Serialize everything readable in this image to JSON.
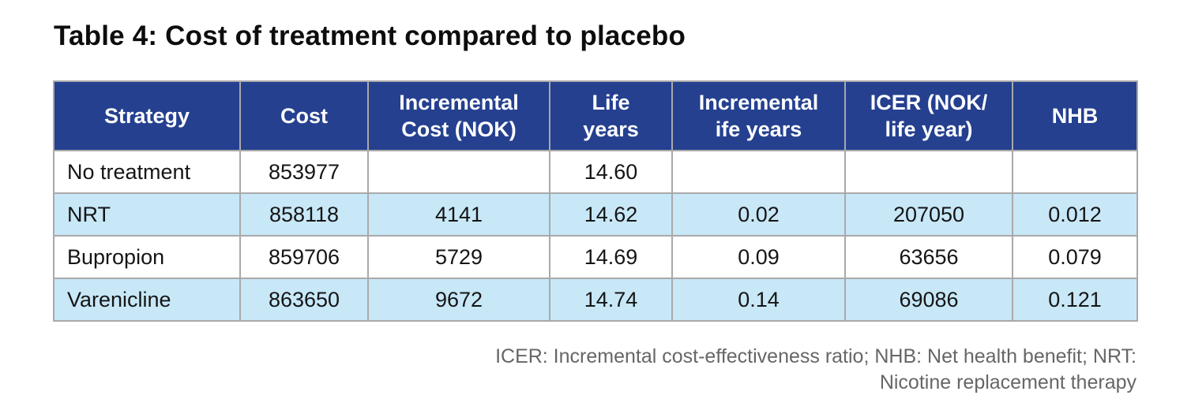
{
  "title": "Table 4: Cost of treatment compared to placebo",
  "table": {
    "headers": [
      {
        "line1": "Strategy",
        "line2": ""
      },
      {
        "line1": "Cost",
        "line2": ""
      },
      {
        "line1": "Incremental",
        "line2": "Cost (NOK)"
      },
      {
        "line1": "Life",
        "line2": "years"
      },
      {
        "line1": "Incremental",
        "line2": "ife years"
      },
      {
        "line1": "ICER (NOK/",
        "line2": "life year)"
      },
      {
        "line1": "NHB",
        "line2": ""
      }
    ],
    "rows": [
      [
        "No treatment",
        "853977",
        "",
        "14.60",
        "",
        "",
        ""
      ],
      [
        "NRT",
        "858118",
        "4141",
        "14.62",
        "0.02",
        "207050",
        "0.012"
      ],
      [
        "Bupropion",
        "859706",
        "5729",
        "14.69",
        "0.09",
        "63656",
        "0.079"
      ],
      [
        "Varenicline",
        "863650",
        "9672",
        "14.74",
        "0.14",
        "69086",
        "0.121"
      ]
    ]
  },
  "footnote": {
    "line1": "ICER: Incremental cost-effectiveness ratio; NHB: Net health benefit; NRT:",
    "line2": "Nicotine replacement therapy"
  },
  "colors": {
    "header_bg": "#25408f",
    "header_text": "#ffffff",
    "row_alt_bg": "#c8e8f8",
    "border": "#a9a9a9"
  }
}
